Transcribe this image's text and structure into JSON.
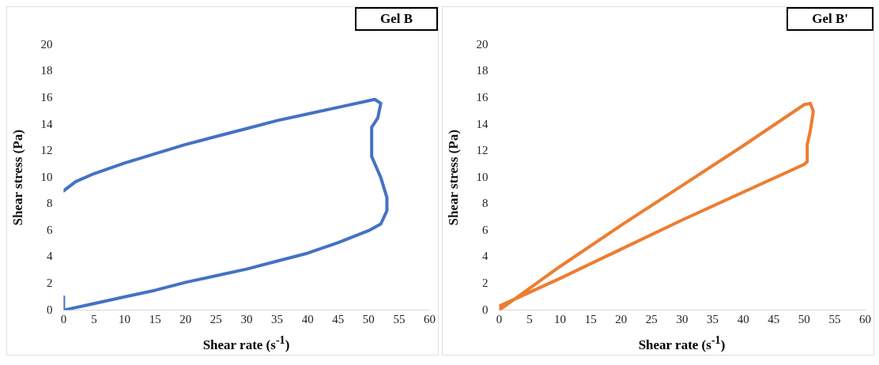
{
  "chart_data": [
    {
      "type": "line",
      "title": "Gel B",
      "xlabel": "Shear rate (s$^{-1}$)",
      "ylabel": "Shear stress (Pa)",
      "xlim": [
        0,
        60
      ],
      "xticks": [
        0,
        5,
        10,
        15,
        20,
        25,
        30,
        35,
        40,
        45,
        50,
        55,
        60
      ],
      "ylim": [
        0,
        20
      ],
      "yticks": [
        0,
        2,
        4,
        6,
        8,
        10,
        12,
        14,
        16,
        18,
        20
      ],
      "grid": false,
      "legend": false,
      "marker": "none",
      "line_style": "solid",
      "series": [
        {
          "color": "#4472c4",
          "x": [
            0,
            2,
            5,
            10,
            15,
            20,
            25,
            30,
            35,
            40,
            45,
            50,
            51,
            52,
            51.5,
            50.5,
            50.5,
            52,
            53,
            53,
            52,
            50,
            45,
            40,
            35,
            30,
            25,
            20,
            15,
            10,
            5,
            0,
            0
          ],
          "values": [
            9,
            9.7,
            10.3,
            11.1,
            11.8,
            12.5,
            13.1,
            13.7,
            14.3,
            14.8,
            15.3,
            15.8,
            15.9,
            15.6,
            14.5,
            13.8,
            11.6,
            10,
            8.5,
            7.5,
            6.5,
            6,
            5.1,
            4.3,
            3.7,
            3.1,
            2.6,
            2.1,
            1.5,
            1,
            0.5,
            0,
            1
          ]
        }
      ]
    },
    {
      "type": "line",
      "title": "Gel B'",
      "xlabel": "Shear rate (s$^{-1}$)",
      "ylabel": "Shear stress (Pa)",
      "xlim": [
        0,
        60
      ],
      "xticks": [
        0,
        5,
        10,
        15,
        20,
        25,
        30,
        35,
        40,
        45,
        50,
        55,
        60
      ],
      "ylim": [
        0,
        20
      ],
      "yticks": [
        0,
        2,
        4,
        6,
        8,
        10,
        12,
        14,
        16,
        18,
        20
      ],
      "grid": false,
      "legend": false,
      "marker": "none",
      "line_style": "solid",
      "series": [
        {
          "color": "#ed7d31",
          "x": [
            0,
            10,
            20,
            30,
            40,
            50,
            51,
            51.5,
            51,
            50.5,
            50.5,
            50,
            40,
            30,
            20,
            10,
            0
          ],
          "values": [
            0,
            3.3,
            6.4,
            9.4,
            12.4,
            15.5,
            15.6,
            15,
            13.5,
            12.5,
            11.2,
            11,
            8.9,
            6.8,
            4.6,
            2.4,
            0.3
          ]
        }
      ]
    }
  ]
}
